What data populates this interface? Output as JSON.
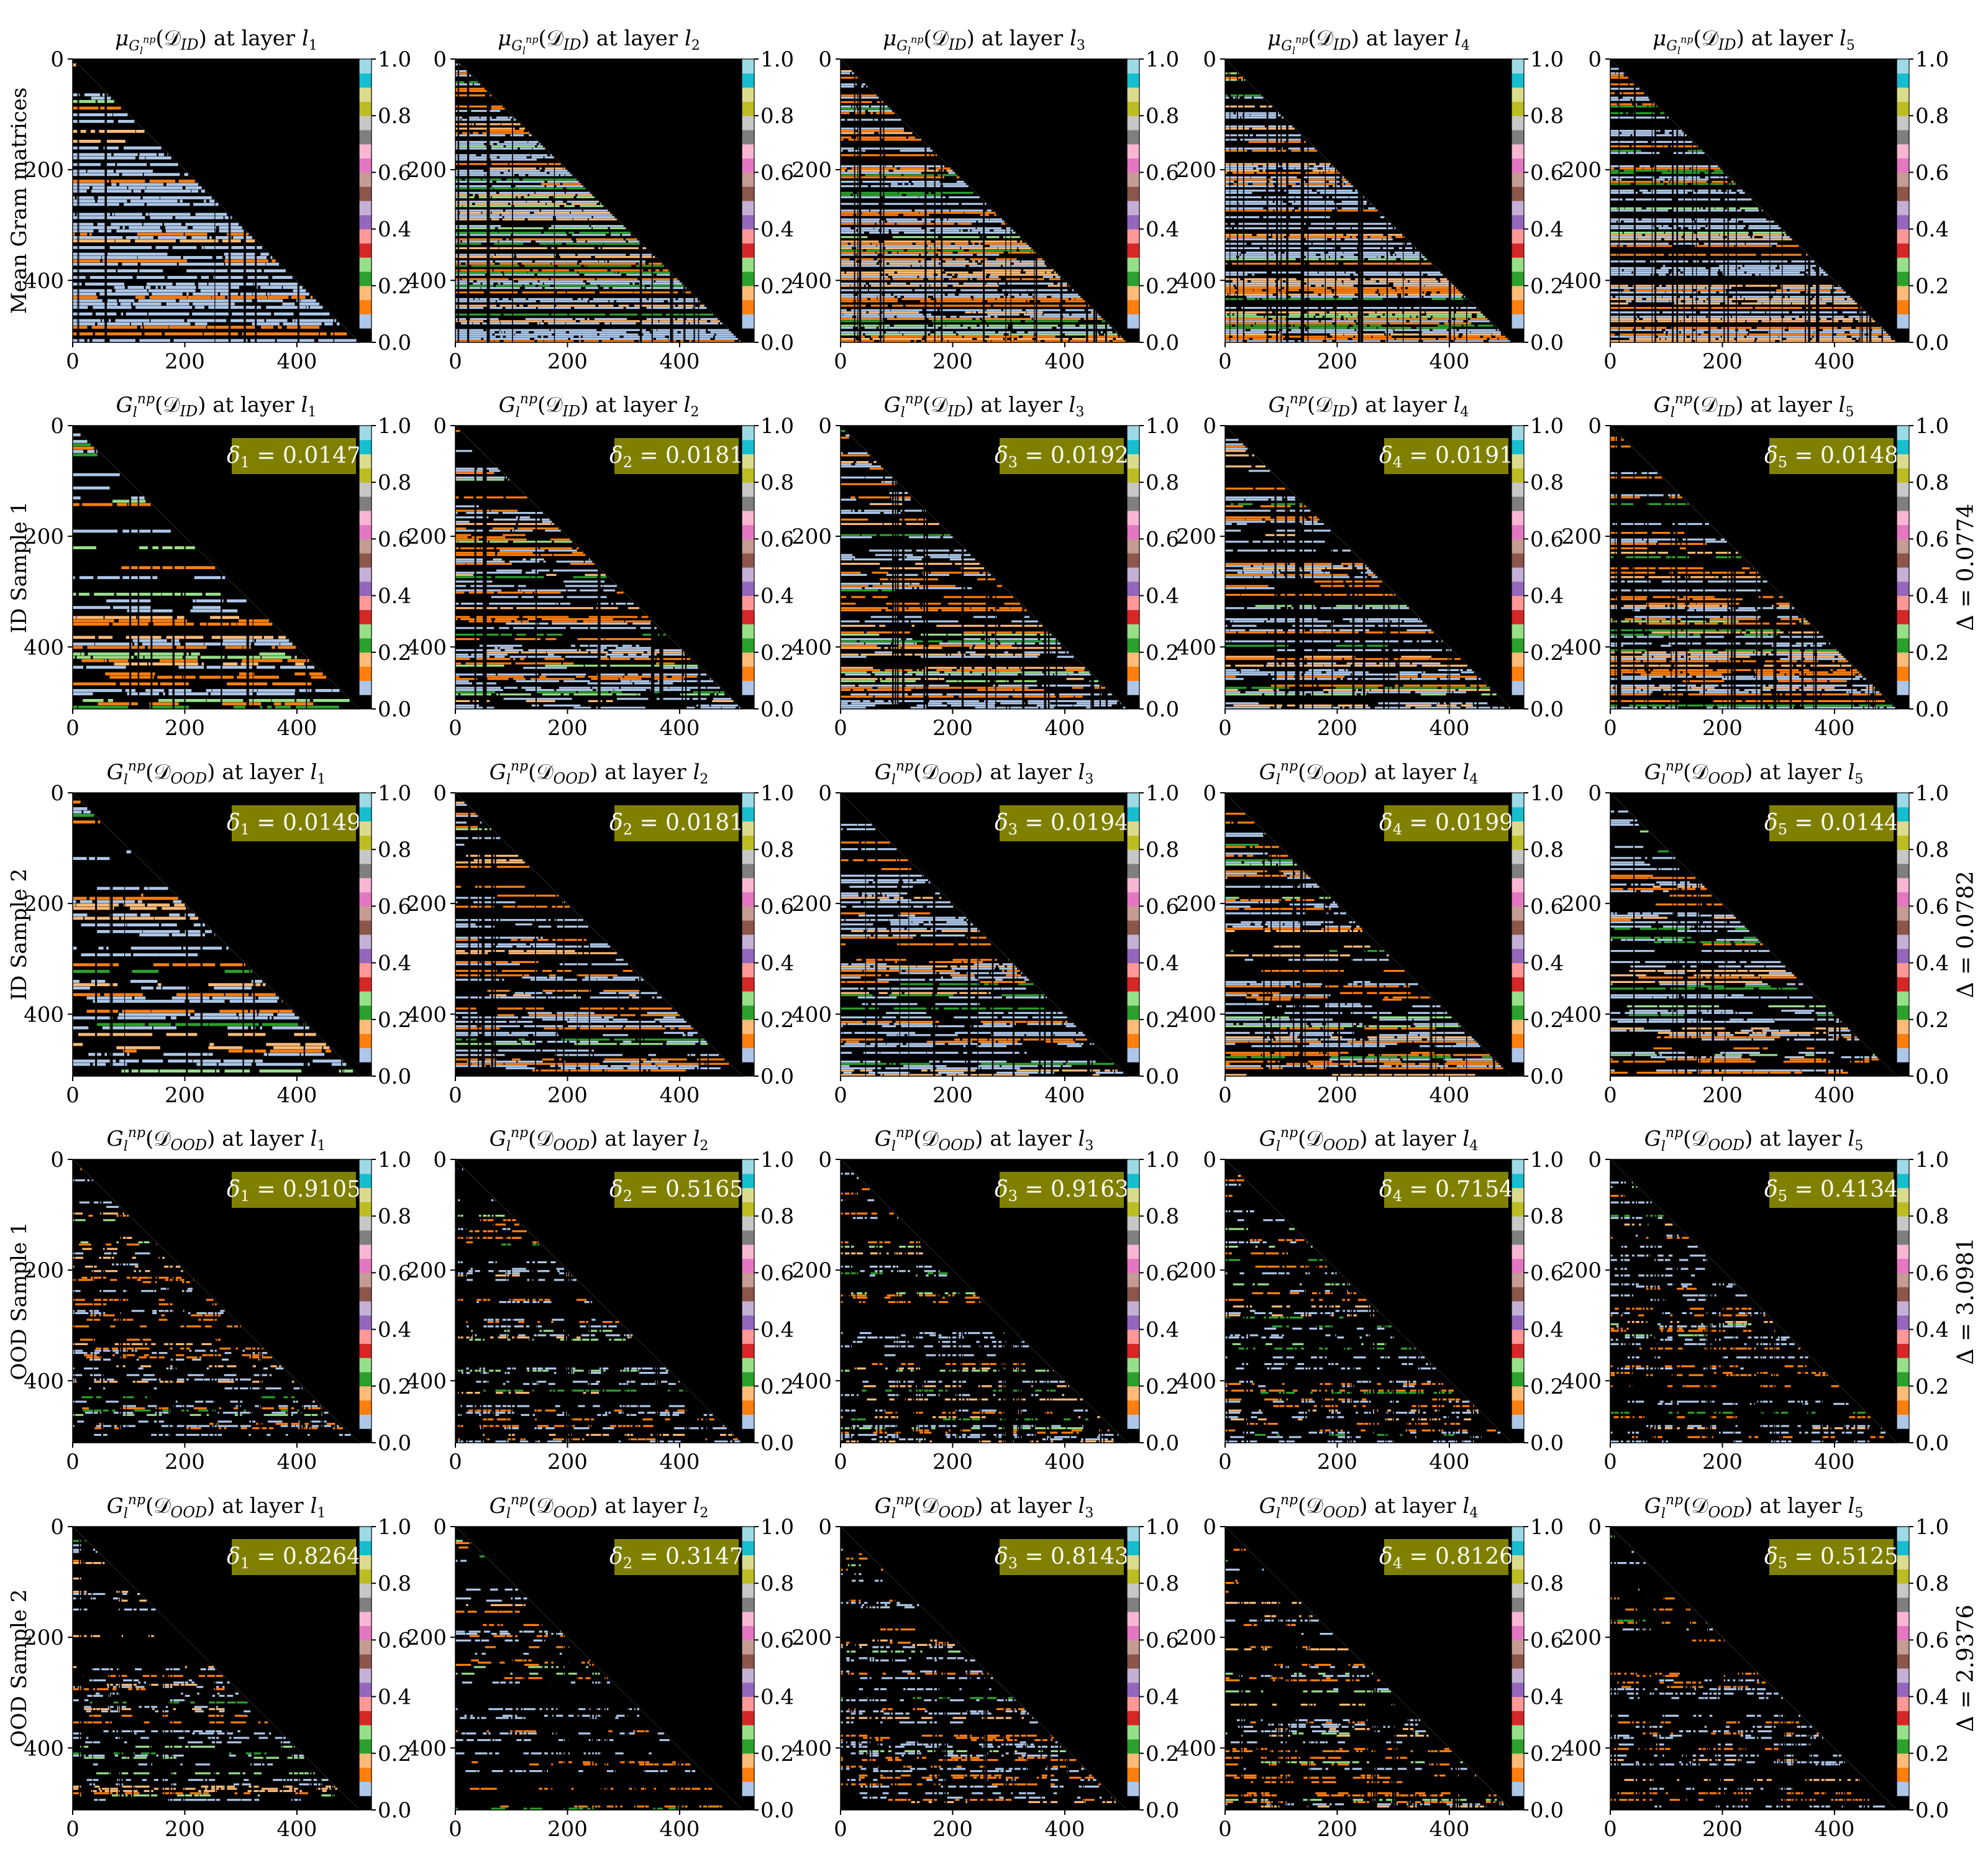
{
  "chart_data": {
    "type": "heatmap",
    "layout": {
      "rows": 5,
      "cols": 5
    },
    "background_color": "#000000",
    "badge_color": "#808000",
    "x_ticks": [
      "0",
      "200",
      "400"
    ],
    "y_ticks": [
      "0",
      "200",
      "400"
    ],
    "x_range": [
      0,
      512
    ],
    "y_range": [
      0,
      512
    ],
    "colorbar": {
      "ticks": [
        "0.0",
        "0.2",
        "0.4",
        "0.6",
        "0.8",
        "1.0"
      ],
      "range": [
        0,
        1
      ],
      "colors": [
        "#000000",
        "#aec7e8",
        "#ff7f0e",
        "#ffbb78",
        "#2ca02c",
        "#98df8a",
        "#d62728",
        "#ff9896",
        "#9467bd",
        "#c5b0d5",
        "#8c564b",
        "#c49c94",
        "#e377c2",
        "#f7b6d2",
        "#7f7f7f",
        "#c7c7c7",
        "#bcbd22",
        "#dbdb8d",
        "#17becf",
        "#9edae5"
      ]
    },
    "rows": [
      {
        "row_label": "Mean Gram matrices",
        "total_delta": "",
        "title_parts": [
          "μ",
          "G",
          "l",
          "np",
          "(𝒟",
          "ID",
          ") at layer "
        ],
        "titles": [
          "l1",
          "l2",
          "l3",
          "l4",
          "l5"
        ],
        "layer_subs": [
          "1",
          "2",
          "3",
          "4",
          "5"
        ],
        "deltas": [
          "",
          "",
          "",
          "",
          ""
        ]
      },
      {
        "row_label": "ID Sample 1",
        "total_delta": "Δ = 0.0774",
        "title_parts": [
          "G",
          "l",
          "np",
          "(𝒟",
          "ID",
          ") at layer "
        ],
        "layer_subs": [
          "1",
          "2",
          "3",
          "4",
          "5"
        ],
        "deltas": [
          "0.0147",
          "0.0181",
          "0.0192",
          "0.0191",
          "0.0148"
        ]
      },
      {
        "row_label": "ID Sample 2",
        "total_delta": "Δ = 0.0782",
        "title_parts": [
          "G",
          "l",
          "np",
          "(𝒟",
          "OOD",
          ") at layer "
        ],
        "layer_subs": [
          "1",
          "2",
          "3",
          "4",
          "5"
        ],
        "deltas": [
          "0.0149",
          "0.0181",
          "0.0194",
          "0.0199",
          "0.0144"
        ]
      },
      {
        "row_label": "OOD Sample 1",
        "total_delta": "Δ = 3.0981",
        "title_parts": [
          "G",
          "l",
          "np",
          "(𝒟",
          "OOD",
          ") at layer "
        ],
        "layer_subs": [
          "1",
          "2",
          "3",
          "4",
          "5"
        ],
        "deltas": [
          "0.9105",
          "0.5165",
          "0.9163",
          "0.7154",
          "0.4134"
        ]
      },
      {
        "row_label": "OOD Sample 2",
        "total_delta": "Δ = 2.9376",
        "title_parts": [
          "G",
          "l",
          "np",
          "(𝒟",
          "OOD",
          ") at layer "
        ],
        "layer_subs": [
          "1",
          "2",
          "3",
          "4",
          "5"
        ],
        "deltas": [
          "0.8264",
          "0.3147",
          "0.8143",
          "0.8126",
          "0.5125"
        ]
      }
    ]
  }
}
